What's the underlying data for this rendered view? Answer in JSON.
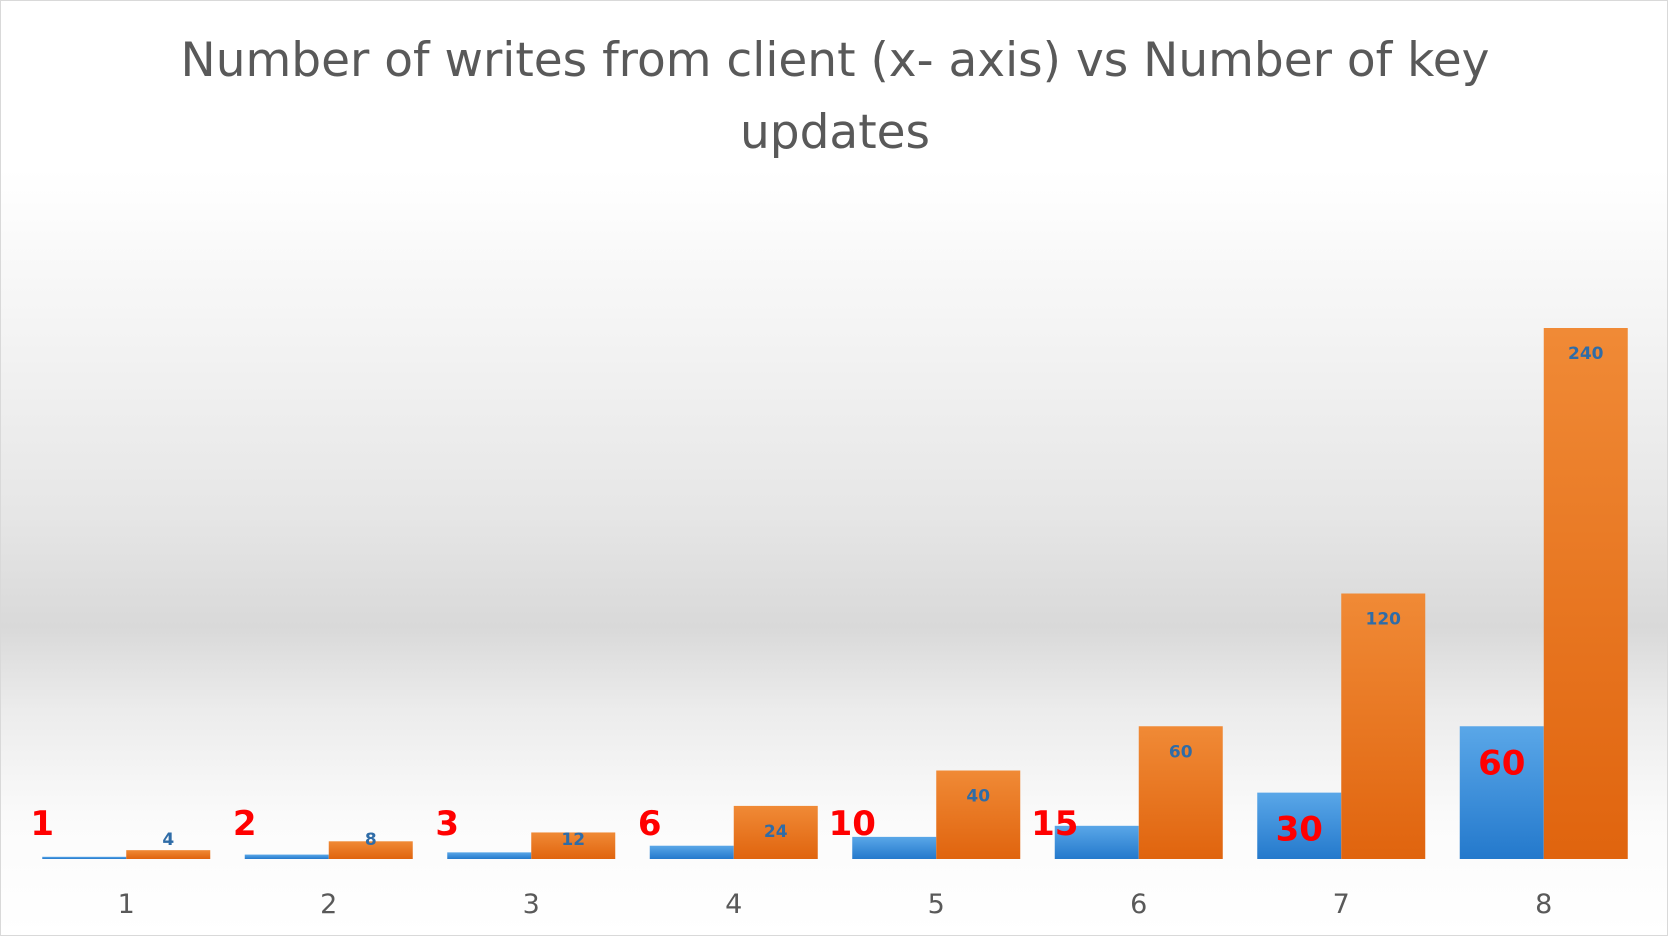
{
  "chart_data": {
    "type": "bar",
    "title_lines": [
      "Number of writes from client (x- axis) vs Number of key",
      "updates"
    ],
    "categories": [
      "1",
      "2",
      "3",
      "4",
      "5",
      "6",
      "7",
      "8"
    ],
    "series": [
      {
        "values": [
          1,
          2,
          3,
          6,
          10,
          15,
          30,
          60
        ],
        "color": "#2e86d6",
        "label_color": "#ff0000"
      },
      {
        "values": [
          4,
          8,
          12,
          24,
          40,
          60,
          120,
          240
        ],
        "color": "#e8711e",
        "label_color": "#2f6ca7"
      }
    ],
    "ylim": [
      0,
      290
    ],
    "grid": false,
    "legend": "none"
  }
}
